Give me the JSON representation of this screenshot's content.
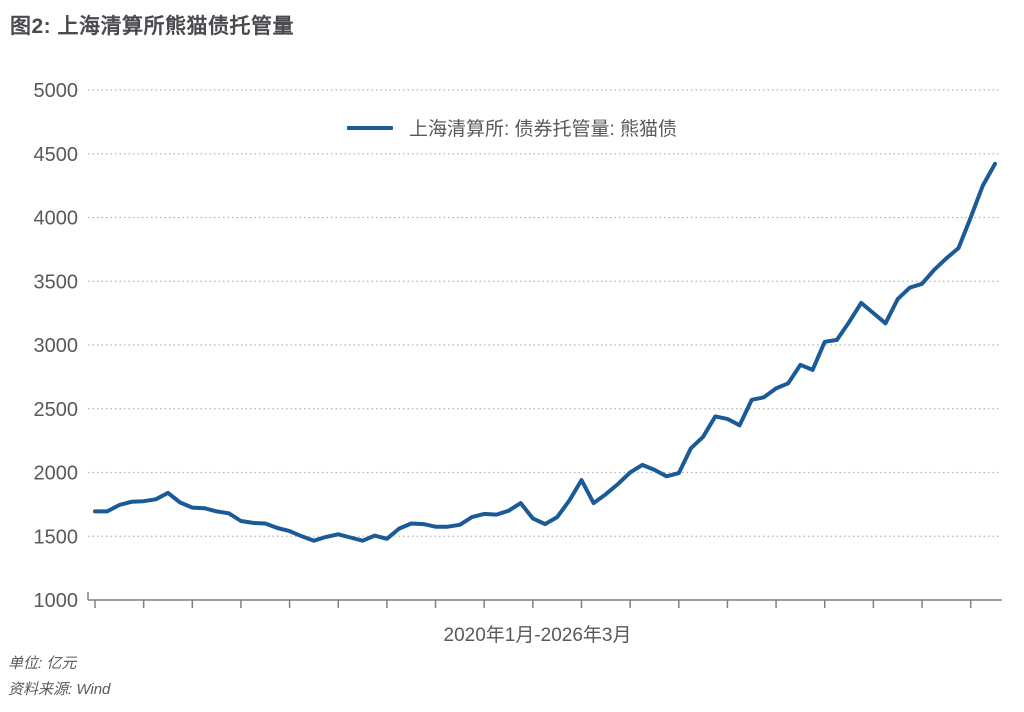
{
  "figure": {
    "title": "图2: 上海清算所熊猫债托管量",
    "unit_note": "单位: 亿元",
    "source_note": "资料来源: Wind"
  },
  "chart_data": {
    "type": "line",
    "title": "上海清算所熊猫债托管量",
    "xlabel": "2020年1月-2026年3月",
    "ylabel": "",
    "x_range": {
      "start": "2020-01",
      "end": "2026-03",
      "frequency": "monthly",
      "count": 75
    },
    "ylim": [
      1000,
      5000
    ],
    "yticks": [
      1000,
      1500,
      2000,
      2500,
      3000,
      3500,
      4000,
      4500,
      5000
    ],
    "grid": "horizontal-dotted",
    "legend_position": "top-center",
    "x_tick_every_months": 4,
    "series": [
      {
        "name": "上海清算所: 债券托管量: 熊猫债",
        "color": "#1a5a96",
        "values": [
          1695,
          1695,
          1745,
          1770,
          1775,
          1790,
          1840,
          1765,
          1725,
          1720,
          1695,
          1680,
          1620,
          1605,
          1600,
          1565,
          1540,
          1500,
          1465,
          1495,
          1515,
          1490,
          1465,
          1505,
          1480,
          1560,
          1600,
          1595,
          1575,
          1575,
          1590,
          1650,
          1675,
          1670,
          1700,
          1760,
          1640,
          1595,
          1650,
          1780,
          1940,
          1760,
          1830,
          1910,
          2000,
          2060,
          2020,
          1970,
          1995,
          2190,
          2280,
          2440,
          2420,
          2370,
          2570,
          2590,
          2660,
          2700,
          2845,
          2805,
          3025,
          3040,
          3180,
          3330,
          3250,
          3170,
          3360,
          3450,
          3480,
          3590,
          3680,
          3760,
          4000,
          4250,
          4420
        ]
      }
    ]
  },
  "colors": {
    "line": "#1a5a96",
    "title_text": "#4a4b4f",
    "axis_text": "#595959",
    "grid_line": "#b3b3b3",
    "axis_line": "#808080"
  }
}
